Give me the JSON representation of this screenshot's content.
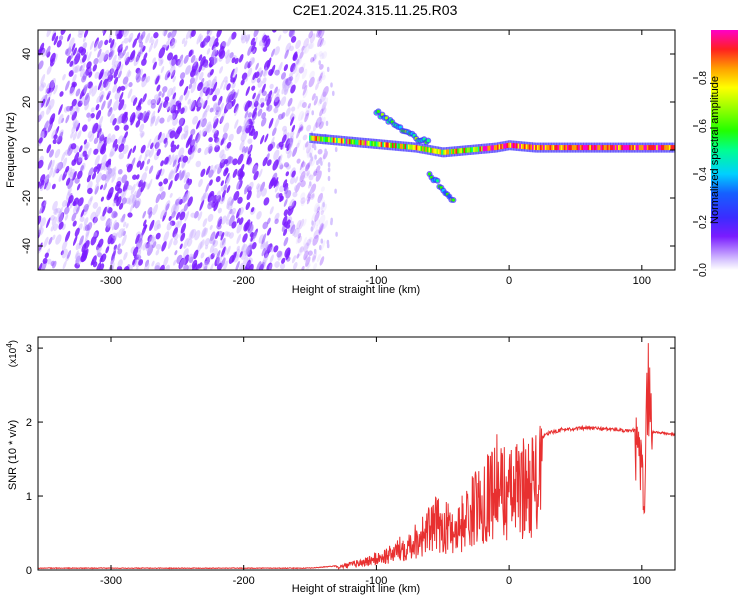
{
  "title": "C2E1.2024.315.11.25.R03",
  "chart_data": [
    {
      "type": "heatmap",
      "xlabel": "Height of straight line (km)",
      "ylabel": "Frequency (Hz)",
      "xlim": [
        -355,
        125
      ],
      "ylim": [
        -50,
        50
      ],
      "x_ticks": [
        -300,
        -200,
        -100,
        0,
        100
      ],
      "y_ticks": [
        -40,
        -20,
        0,
        20,
        40
      ],
      "colorbar": {
        "label": "Normalized spectral amplitude",
        "range": [
          0,
          1
        ],
        "ticks": [
          0.0,
          0.2,
          0.4,
          0.6,
          0.8
        ]
      },
      "features": {
        "noise_region_x": [
          -355,
          -150
        ],
        "main_line": [
          [
            -150,
            5
          ],
          [
            -130,
            4
          ],
          [
            -110,
            3
          ],
          [
            -90,
            2
          ],
          [
            -70,
            1
          ],
          [
            -50,
            -1
          ],
          [
            -30,
            0
          ],
          [
            -10,
            1
          ],
          [
            0,
            2
          ],
          [
            20,
            1
          ],
          [
            60,
            1
          ],
          [
            100,
            1
          ],
          [
            125,
            1
          ]
        ],
        "upper_branch": [
          [
            -100,
            16
          ],
          [
            -90,
            12
          ],
          [
            -80,
            8
          ],
          [
            -70,
            5
          ],
          [
            -60,
            3
          ]
        ],
        "lower_branch": [
          [
            -60,
            -10
          ],
          [
            -50,
            -16
          ],
          [
            -42,
            -21
          ]
        ]
      },
      "grid": false
    },
    {
      "type": "line",
      "xlabel": "Height of straight line (km)",
      "ylabel": "SNR (10 * v/v)",
      "y_multiplier_label": "(x10",
      "y_multiplier_exp": "4",
      "xlim": [
        -355,
        125
      ],
      "ylim": [
        0,
        3.15
      ],
      "x_ticks": [
        -300,
        -200,
        -100,
        0,
        100
      ],
      "y_ticks": [
        0,
        1,
        2,
        3
      ],
      "series_color": "#e83030",
      "envelope": [
        [
          -355,
          0.02
        ],
        [
          -150,
          0.02
        ],
        [
          -130,
          0.05
        ],
        [
          -110,
          0.15
        ],
        [
          -90,
          0.3
        ],
        [
          -70,
          0.6
        ],
        [
          -55,
          0.9
        ],
        [
          -40,
          0.8
        ],
        [
          -30,
          1.1
        ],
        [
          -20,
          1.4
        ],
        [
          -10,
          1.7
        ],
        [
          0,
          1.5
        ],
        [
          10,
          1.65
        ],
        [
          20,
          1.75
        ],
        [
          30,
          1.85
        ],
        [
          40,
          1.9
        ],
        [
          60,
          1.92
        ],
        [
          80,
          1.9
        ],
        [
          90,
          1.87
        ],
        [
          96,
          1.9
        ],
        [
          100,
          1.6
        ],
        [
          102,
          1.0
        ],
        [
          104,
          2.7
        ],
        [
          105,
          3.1
        ],
        [
          108,
          1.87
        ],
        [
          125,
          1.83
        ]
      ],
      "grid": false
    }
  ]
}
